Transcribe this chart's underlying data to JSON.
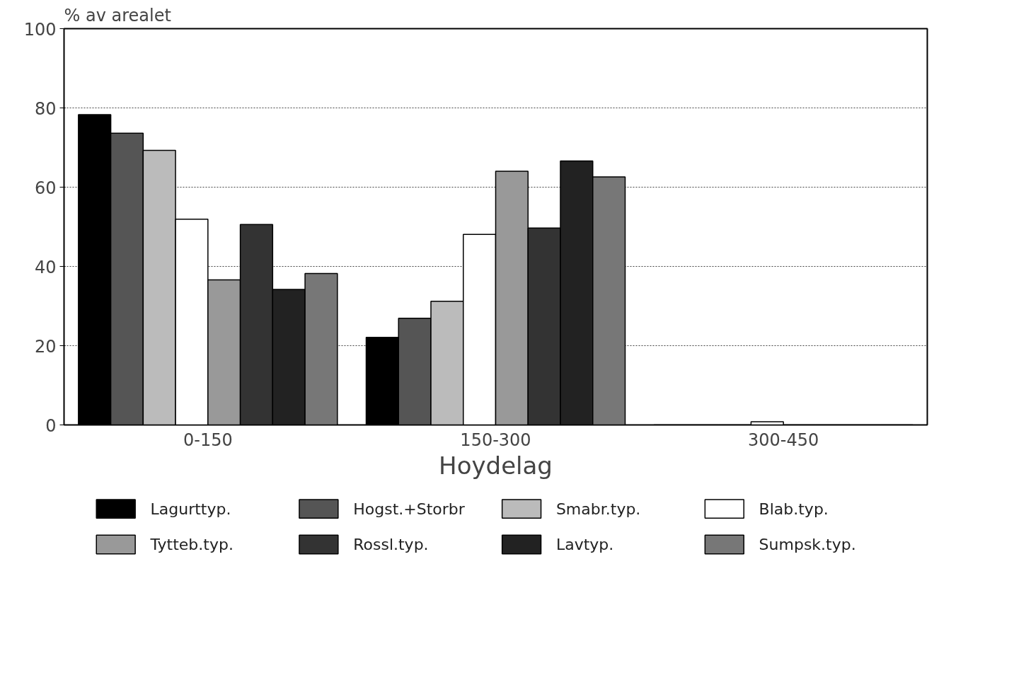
{
  "chart_data": {
    "type": "bar",
    "ylabel": "% av arealet",
    "xlabel": "Hoydelag",
    "categories": [
      "0-150",
      "150-300",
      "300-450"
    ],
    "ylim": [
      0,
      100
    ],
    "yticks": [
      0,
      20,
      40,
      60,
      80,
      100
    ],
    "grid": "y",
    "legend": "bottom",
    "series": [
      {
        "name": "Lagurttyp.",
        "color": "#000000",
        "values": [
          78.3,
          22.1,
          0
        ]
      },
      {
        "name": "Hogst.+Storbr",
        "color": "#555555",
        "values": [
          73.6,
          26.9,
          0
        ]
      },
      {
        "name": "Smabr.typ.",
        "color": "#bbbbbb",
        "values": [
          69.3,
          31.2,
          0
        ]
      },
      {
        "name": "Blab.typ.",
        "color": "#ffffff",
        "values": [
          51.9,
          48.1,
          0.8
        ]
      },
      {
        "name": "Tytteb.typ.",
        "color": "#999999",
        "values": [
          36.6,
          64.0,
          0
        ]
      },
      {
        "name": "Rossl.typ.",
        "color": "#333333",
        "values": [
          50.6,
          49.7,
          0
        ]
      },
      {
        "name": "Lavtyp.",
        "color": "#222222",
        "values": [
          34.2,
          66.6,
          0
        ]
      },
      {
        "name": "Sumpsk.typ.",
        "color": "#777777",
        "values": [
          38.2,
          62.6,
          0
        ]
      }
    ]
  }
}
